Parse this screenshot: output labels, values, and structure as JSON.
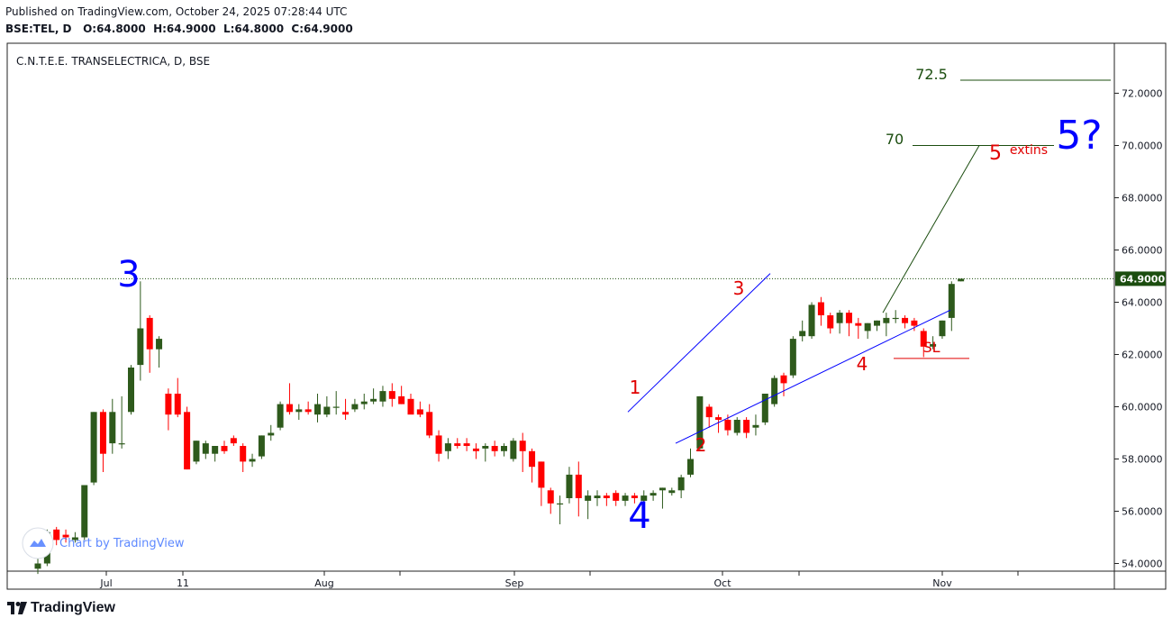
{
  "header": {
    "published": "Published on TradingView.com, October 24, 2025 07:28:44 UTC",
    "symbol": "BSE:TEL, D",
    "open_label": "O:",
    "open": "64.8000",
    "high_label": "H:",
    "high": "64.9000",
    "low_label": "L:",
    "low": "64.8000",
    "close_label": "C:",
    "close": "64.9000"
  },
  "chart_title": "C.N.T.E.E. TRANSELECTRICA, D, BSE",
  "watermark": "Chart by TradingView",
  "footer_logo": "TradingView",
  "last_price_label": "64.9000",
  "colors": {
    "up": "#2e5a1c",
    "down": "#ff0000",
    "wave_blue": "#0000ff",
    "wave_red": "#e00000",
    "target_green": "#1b4d0f",
    "last_price": "#1b4d0f"
  },
  "chart_data": {
    "type": "candlestick",
    "ylim": [
      53.8,
      73.6
    ],
    "y_ticks": [
      "54.0000",
      "56.0000",
      "58.0000",
      "60.0000",
      "62.0000",
      "64.0000",
      "66.0000",
      "68.0000",
      "70.0000",
      "72.0000"
    ],
    "x_ticks": [
      "Jul",
      "11",
      "Aug",
      "Sep",
      "Oct",
      "Nov"
    ],
    "candles": [
      [
        53.8,
        54.2,
        53.6,
        54.0
      ],
      [
        54.0,
        55.3,
        53.9,
        55.2
      ],
      [
        55.3,
        55.4,
        54.7,
        54.9
      ],
      [
        55.1,
        55.3,
        54.8,
        55.0
      ],
      [
        54.9,
        55.2,
        54.8,
        55.0
      ],
      [
        55.0,
        57.0,
        54.9,
        57.0
      ],
      [
        57.1,
        59.8,
        57.0,
        59.8
      ],
      [
        59.8,
        59.9,
        57.5,
        58.2
      ],
      [
        58.6,
        60.3,
        58.2,
        59.8
      ],
      [
        58.6,
        60.4,
        58.4,
        58.6
      ],
      [
        59.8,
        61.6,
        59.7,
        61.5
      ],
      [
        61.6,
        64.8,
        61.0,
        63.0
      ],
      [
        63.4,
        63.5,
        61.3,
        62.2
      ],
      [
        62.2,
        62.7,
        61.5,
        62.6
      ],
      [
        60.5,
        60.7,
        59.1,
        59.7
      ],
      [
        60.5,
        61.1,
        59.6,
        59.7
      ],
      [
        59.8,
        60.0,
        57.6,
        57.6
      ],
      [
        57.9,
        58.7,
        57.8,
        58.7
      ],
      [
        58.2,
        58.7,
        58.0,
        58.6
      ],
      [
        58.2,
        58.5,
        57.9,
        58.5
      ],
      [
        58.5,
        58.7,
        58.2,
        58.3
      ],
      [
        58.8,
        58.9,
        58.5,
        58.6
      ],
      [
        58.5,
        58.6,
        57.5,
        57.9
      ],
      [
        57.9,
        58.2,
        57.7,
        58.0
      ],
      [
        58.1,
        58.9,
        58.0,
        58.9
      ],
      [
        58.9,
        59.3,
        58.7,
        59.0
      ],
      [
        59.2,
        60.2,
        59.1,
        60.1
      ],
      [
        60.1,
        60.9,
        59.7,
        59.8
      ],
      [
        59.8,
        60.1,
        59.5,
        59.9
      ],
      [
        59.9,
        60.2,
        59.7,
        59.8
      ],
      [
        59.7,
        60.5,
        59.4,
        60.1
      ],
      [
        59.7,
        60.4,
        59.6,
        60.0
      ],
      [
        60.0,
        60.6,
        59.7,
        60.0
      ],
      [
        59.8,
        60.3,
        59.5,
        59.7
      ],
      [
        59.9,
        60.3,
        59.8,
        60.1
      ],
      [
        60.1,
        60.5,
        59.9,
        60.2
      ],
      [
        60.2,
        60.7,
        60.1,
        60.3
      ],
      [
        60.2,
        60.8,
        60.0,
        60.6
      ],
      [
        60.6,
        60.9,
        60.0,
        60.3
      ],
      [
        60.4,
        60.8,
        60.1,
        60.1
      ],
      [
        60.3,
        60.5,
        59.8,
        59.7
      ],
      [
        59.9,
        60.2,
        59.6,
        59.7
      ],
      [
        59.8,
        60.1,
        58.8,
        58.9
      ],
      [
        58.9,
        59.1,
        57.9,
        58.2
      ],
      [
        58.3,
        58.8,
        58.0,
        58.6
      ],
      [
        58.6,
        58.8,
        58.4,
        58.5
      ],
      [
        58.6,
        58.8,
        58.3,
        58.5
      ],
      [
        58.4,
        58.6,
        58.0,
        58.3
      ],
      [
        58.4,
        58.6,
        57.9,
        58.5
      ],
      [
        58.5,
        58.7,
        58.1,
        58.3
      ],
      [
        58.3,
        58.6,
        58.1,
        58.5
      ],
      [
        58.0,
        58.8,
        57.9,
        58.7
      ],
      [
        58.7,
        59.0,
        57.5,
        58.3
      ],
      [
        58.3,
        58.4,
        57.1,
        57.7
      ],
      [
        57.9,
        57.9,
        56.2,
        56.9
      ],
      [
        56.8,
        56.9,
        55.9,
        56.3
      ],
      [
        56.3,
        56.6,
        55.5,
        56.3
      ],
      [
        56.5,
        57.7,
        56.3,
        57.4
      ],
      [
        57.4,
        57.9,
        55.8,
        56.5
      ],
      [
        56.4,
        56.8,
        55.7,
        56.6
      ],
      [
        56.5,
        56.8,
        56.2,
        56.6
      ],
      [
        56.6,
        56.7,
        56.2,
        56.5
      ],
      [
        56.7,
        56.8,
        56.2,
        56.4
      ],
      [
        56.4,
        56.7,
        56.2,
        56.6
      ],
      [
        56.6,
        56.7,
        56.3,
        56.5
      ],
      [
        56.4,
        56.8,
        56.3,
        56.6
      ],
      [
        56.6,
        56.8,
        56.4,
        56.7
      ],
      [
        56.8,
        56.9,
        56.1,
        56.9
      ],
      [
        56.7,
        56.9,
        56.6,
        56.8
      ],
      [
        56.8,
        57.4,
        56.5,
        57.3
      ],
      [
        57.4,
        58.4,
        57.3,
        58.0
      ],
      [
        58.4,
        60.4,
        58.3,
        60.4
      ],
      [
        60.0,
        60.1,
        59.2,
        59.6
      ],
      [
        59.6,
        59.7,
        59.0,
        59.5
      ],
      [
        59.5,
        59.7,
        58.9,
        59.1
      ],
      [
        59.0,
        59.6,
        58.9,
        59.5
      ],
      [
        59.5,
        59.6,
        58.8,
        59.0
      ],
      [
        59.2,
        59.7,
        58.9,
        59.3
      ],
      [
        59.4,
        60.5,
        59.3,
        60.5
      ],
      [
        60.1,
        61.2,
        60.0,
        61.1
      ],
      [
        61.2,
        61.3,
        60.4,
        60.9
      ],
      [
        61.2,
        62.7,
        61.1,
        62.6
      ],
      [
        62.7,
        63.3,
        62.5,
        62.9
      ],
      [
        62.7,
        64.0,
        62.6,
        63.9
      ],
      [
        64.0,
        64.2,
        63.1,
        63.5
      ],
      [
        63.5,
        63.6,
        62.8,
        63.0
      ],
      [
        63.2,
        63.7,
        62.8,
        63.6
      ],
      [
        63.6,
        63.7,
        62.7,
        63.2
      ],
      [
        63.2,
        63.4,
        62.6,
        63.1
      ],
      [
        62.9,
        63.2,
        62.6,
        63.2
      ],
      [
        63.1,
        63.3,
        62.9,
        63.3
      ],
      [
        63.2,
        63.6,
        62.7,
        63.4
      ],
      [
        63.4,
        63.7,
        63.2,
        63.4
      ],
      [
        63.4,
        63.5,
        63.0,
        63.2
      ],
      [
        63.3,
        63.4,
        62.9,
        63.1
      ],
      [
        62.9,
        63.0,
        61.9,
        62.3
      ],
      [
        62.3,
        62.7,
        62.2,
        62.4
      ],
      [
        62.7,
        63.3,
        62.6,
        63.3
      ],
      [
        63.4,
        64.8,
        62.9,
        64.7
      ],
      [
        64.8,
        64.9,
        64.8,
        64.9
      ]
    ],
    "annotations": {
      "big_3": "3",
      "big_4": "4",
      "big_5q": "5?",
      "small_1": "1",
      "small_2": "2",
      "small_3": "3",
      "small_4": "4",
      "small_5": "5",
      "extins": "extins",
      "sl": "SL",
      "t70": "70",
      "t72_5": "72.5"
    }
  }
}
